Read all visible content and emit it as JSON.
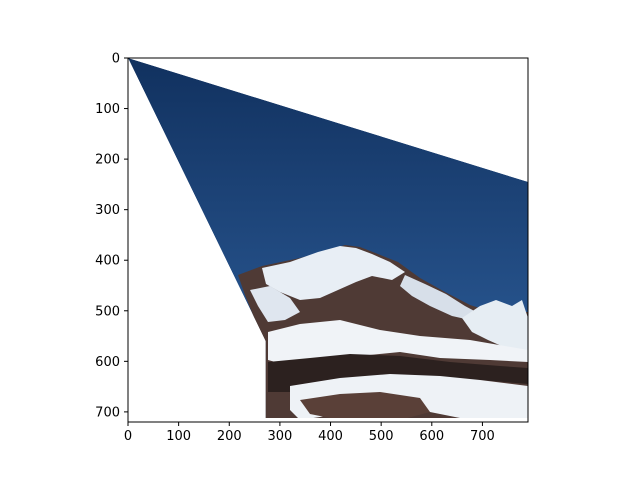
{
  "chart_data": {
    "type": "image",
    "title": "",
    "xlabel": "",
    "ylabel": "",
    "xlim": [
      0,
      790
    ],
    "ylim": [
      720,
      0
    ],
    "x_ticks": [
      0,
      100,
      200,
      300,
      400,
      500,
      600,
      700
    ],
    "y_ticks": [
      0,
      100,
      200,
      300,
      400,
      500,
      600,
      700
    ],
    "x_tick_labels": [
      "0",
      "100",
      "200",
      "300",
      "400",
      "500",
      "600",
      "700"
    ],
    "y_tick_labels": [
      "0",
      "100",
      "200",
      "300",
      "400",
      "500",
      "600",
      "700"
    ],
    "grid": false,
    "image_content": "warped photograph of a snow-covered mountain under a dark blue sky",
    "image_region_corners": [
      [
        0,
        0
      ],
      [
        790,
        245
      ],
      [
        790,
        712
      ],
      [
        272,
        712
      ],
      [
        272,
        560
      ]
    ],
    "colors": {
      "sky_top": "#11315f",
      "sky_bottom": "#2e5f9c",
      "snow": "#eef2f6",
      "rock": "#4f3a35",
      "dark_rock": "#2c211f"
    }
  }
}
